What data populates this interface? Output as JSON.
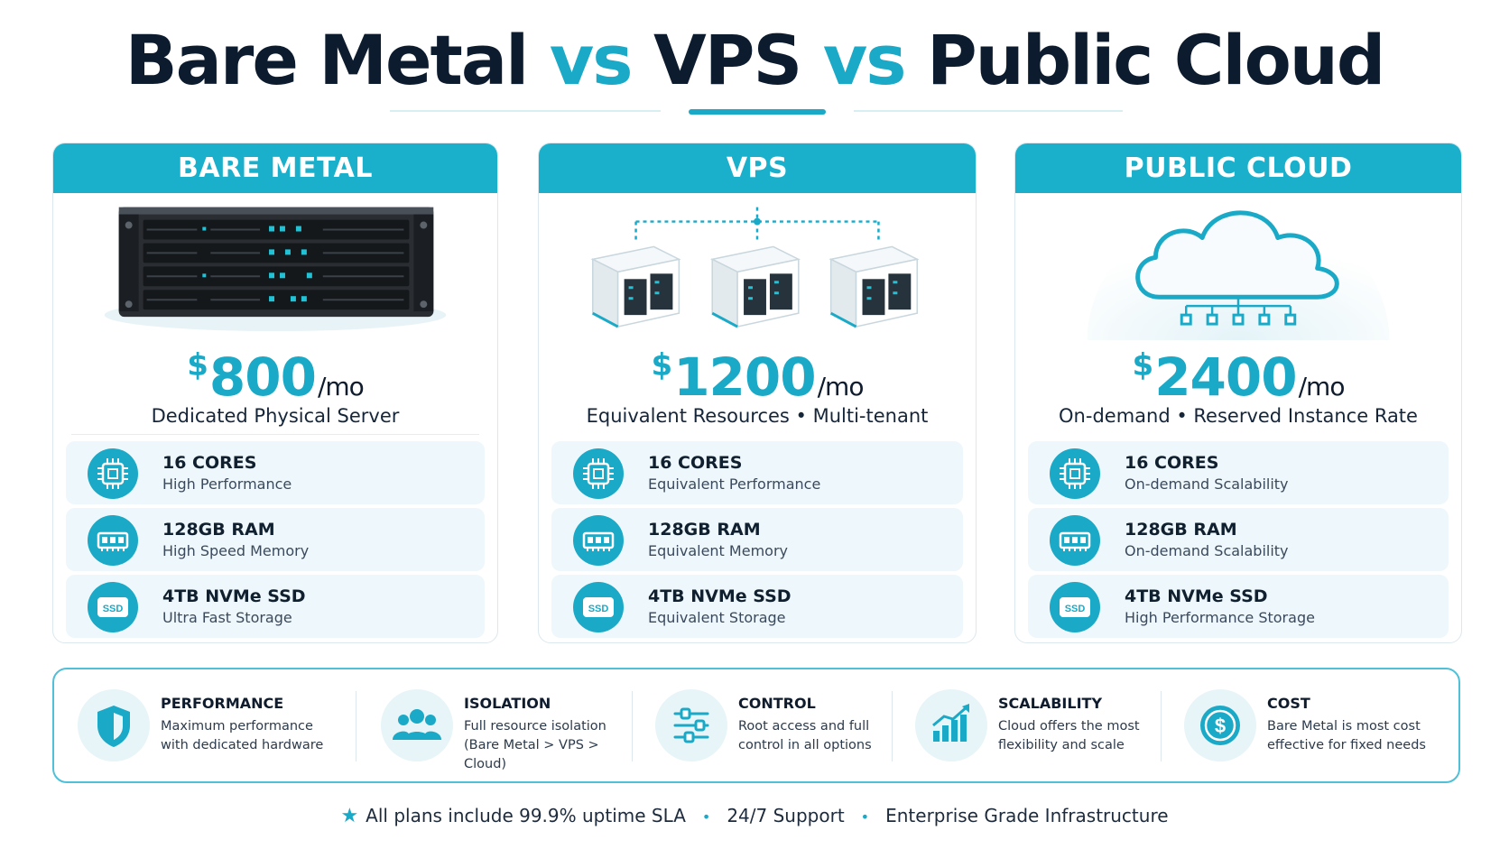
{
  "title": {
    "part1": "Bare Metal",
    "vs1": "vs",
    "part2": "VPS",
    "vs2": "vs",
    "part3": "Public Cloud"
  },
  "colors": {
    "accent": "#1aa9c6",
    "header": "#1ab0cb",
    "text": "#0f1c2e"
  },
  "cards": [
    {
      "header": "BARE METAL",
      "currency": "$",
      "price": "800",
      "per": "/mo",
      "subtitle": "Dedicated Physical Server",
      "illustration": "rack-server-icon",
      "specs": [
        {
          "icon": "cpu-icon",
          "title": "16 CORES",
          "desc": "High Performance"
        },
        {
          "icon": "ram-icon",
          "title": "128GB RAM",
          "desc": "High Speed Memory"
        },
        {
          "icon": "ssd-icon",
          "title": "4TB NVMe SSD",
          "desc": "Ultra Fast Storage",
          "icon_text": "SSD"
        }
      ]
    },
    {
      "header": "VPS",
      "currency": "$",
      "price": "1200",
      "per": "/mo",
      "subtitle": "Equivalent Resources • Multi-tenant",
      "illustration": "virtual-servers-icon",
      "specs": [
        {
          "icon": "cpu-icon",
          "title": "16 CORES",
          "desc": "Equivalent Performance"
        },
        {
          "icon": "ram-icon",
          "title": "128GB RAM",
          "desc": "Equivalent Memory"
        },
        {
          "icon": "ssd-icon",
          "title": "4TB NVMe SSD",
          "desc": "Equivalent Storage",
          "icon_text": "SSD"
        }
      ]
    },
    {
      "header": "PUBLIC CLOUD",
      "currency": "$",
      "price": "2400",
      "per": "/mo",
      "subtitle": "On-demand • Reserved Instance Rate",
      "illustration": "cloud-icon",
      "specs": [
        {
          "icon": "cpu-icon",
          "title": "16 CORES",
          "desc": "On-demand Scalability"
        },
        {
          "icon": "ram-icon",
          "title": "128GB RAM",
          "desc": "On-demand Scalability"
        },
        {
          "icon": "ssd-icon",
          "title": "4TB NVMe SSD",
          "desc": "High Performance Storage",
          "icon_text": "SSD"
        }
      ]
    }
  ],
  "benefits": [
    {
      "icon": "shield-icon",
      "title": "PERFORMANCE",
      "line1": "Maximum performance",
      "line2": "with dedicated hardware"
    },
    {
      "icon": "users-icon",
      "title": "ISOLATION",
      "line1": "Full resource isolation",
      "line2": "(Bare Metal > VPS > Cloud)"
    },
    {
      "icon": "sliders-icon",
      "title": "CONTROL",
      "line1": "Root access and full",
      "line2": "control in all options"
    },
    {
      "icon": "growth-chart-icon",
      "title": "SCALABILITY",
      "line1": "Cloud offers the most",
      "line2": "flexibility and scale"
    },
    {
      "icon": "dollar-icon",
      "title": "COST",
      "line1": "Bare Metal is most cost",
      "line2": "effective for fixed needs"
    }
  ],
  "footer": {
    "icon": "star-icon",
    "item1": "All plans include 99.9% uptime SLA",
    "item2": "24/7 Support",
    "item3": "Enterprise Grade Infrastructure"
  }
}
